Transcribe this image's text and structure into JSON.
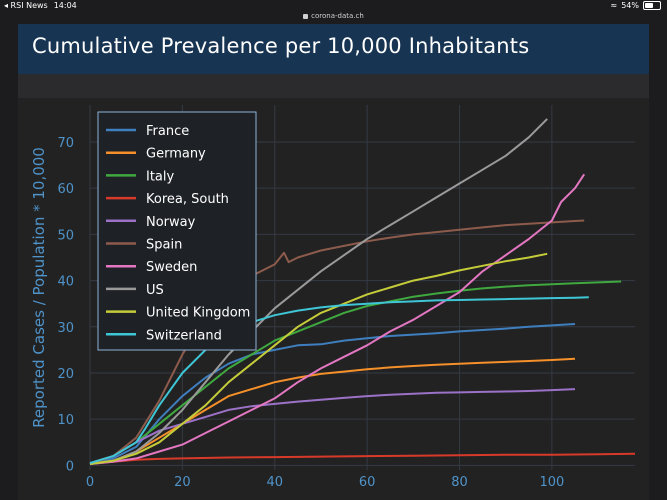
{
  "status_bar": {
    "back_app": "◂ RSI News",
    "time": "14:04",
    "url": "corona-data.ch",
    "battery": "54%",
    "battery_level": 0.54
  },
  "chart_data": {
    "type": "line",
    "title": "Cumulative Prevalence per 10,000 Inhabitants",
    "xlabel": "",
    "ylabel": "Reported Cases / Population * 10,000",
    "xlim": [
      0,
      118
    ],
    "ylim": [
      -1,
      78
    ],
    "xticks": [
      0,
      20,
      40,
      60,
      80,
      100
    ],
    "yticks": [
      0,
      10,
      20,
      30,
      40,
      50,
      60,
      70
    ],
    "grid": true,
    "legend_position": "top-left",
    "series": [
      {
        "name": "France",
        "color": "#3f7fbf",
        "x": [
          0,
          5,
          10,
          15,
          20,
          25,
          30,
          35,
          40,
          45,
          50,
          55,
          60,
          65,
          70,
          75,
          80,
          85,
          90,
          95,
          100,
          105
        ],
        "y": [
          0.5,
          1.5,
          4,
          10,
          15,
          19,
          22,
          24,
          25,
          26,
          26.2,
          27,
          27.5,
          28,
          28.3,
          28.6,
          29,
          29.3,
          29.6,
          30,
          30.3,
          30.6
        ]
      },
      {
        "name": "Germany",
        "color": "#f5902a",
        "x": [
          0,
          5,
          10,
          15,
          20,
          25,
          30,
          35,
          40,
          45,
          50,
          55,
          60,
          65,
          70,
          75,
          80,
          85,
          90,
          95,
          100,
          105
        ],
        "y": [
          0.3,
          1,
          3,
          6,
          9,
          12,
          15,
          16.5,
          18,
          19,
          19.8,
          20.3,
          20.8,
          21.2,
          21.5,
          21.8,
          22,
          22.2,
          22.4,
          22.6,
          22.8,
          23.1
        ]
      },
      {
        "name": "Italy",
        "color": "#3fa83f",
        "x": [
          0,
          5,
          10,
          15,
          20,
          25,
          30,
          35,
          40,
          45,
          50,
          55,
          60,
          65,
          70,
          75,
          80,
          85,
          90,
          95,
          100,
          105,
          110,
          115
        ],
        "y": [
          0.5,
          2,
          5,
          9,
          13,
          17,
          21,
          24,
          27,
          29,
          31,
          33,
          34.5,
          35.5,
          36.5,
          37.2,
          37.8,
          38.3,
          38.7,
          39,
          39.2,
          39.4,
          39.6,
          39.8
        ]
      },
      {
        "name": "Korea, South",
        "color": "#d83a2a",
        "x": [
          0,
          5,
          10,
          15,
          20,
          30,
          40,
          50,
          60,
          70,
          80,
          90,
          100,
          110,
          118
        ],
        "y": [
          0.3,
          0.8,
          1.2,
          1.4,
          1.5,
          1.7,
          1.8,
          1.9,
          2,
          2.1,
          2.2,
          2.3,
          2.3,
          2.4,
          2.5
        ]
      },
      {
        "name": "Norway",
        "color": "#9b72c7",
        "x": [
          0,
          5,
          10,
          15,
          20,
          25,
          30,
          35,
          40,
          45,
          50,
          55,
          60,
          65,
          70,
          75,
          80,
          85,
          90,
          95,
          100,
          105
        ],
        "y": [
          0.5,
          2,
          5,
          7.5,
          9,
          10.5,
          12,
          12.8,
          13.3,
          13.8,
          14.2,
          14.6,
          15,
          15.3,
          15.5,
          15.7,
          15.8,
          15.9,
          16,
          16.1,
          16.3,
          16.5
        ]
      },
      {
        "name": "Spain",
        "color": "#8d5b4c",
        "x": [
          0,
          5,
          10,
          15,
          20,
          25,
          30,
          35,
          40,
          42,
          43,
          45,
          50,
          55,
          60,
          65,
          70,
          75,
          80,
          85,
          90,
          95,
          100,
          105,
          107
        ],
        "y": [
          0.3,
          2,
          6,
          14,
          24,
          32,
          38,
          41,
          43.5,
          46,
          44,
          45,
          46.5,
          47.5,
          48.5,
          49.3,
          50,
          50.5,
          51,
          51.5,
          52,
          52.3,
          52.6,
          52.9,
          53
        ]
      },
      {
        "name": "Sweden",
        "color": "#e377c2",
        "x": [
          0,
          5,
          10,
          15,
          20,
          25,
          30,
          35,
          40,
          45,
          50,
          55,
          60,
          65,
          70,
          75,
          80,
          85,
          90,
          95,
          100,
          102,
          105,
          107
        ],
        "y": [
          0.3,
          0.8,
          1.5,
          3,
          4.5,
          7,
          9.5,
          12,
          14.5,
          18,
          21,
          23.5,
          26,
          29,
          31.5,
          34.5,
          37.5,
          42,
          45.5,
          49,
          53,
          57,
          60,
          63
        ]
      },
      {
        "name": "US",
        "color": "#9a9a9a",
        "x": [
          0,
          5,
          10,
          15,
          20,
          25,
          30,
          35,
          40,
          45,
          50,
          55,
          60,
          65,
          70,
          75,
          80,
          85,
          90,
          95,
          99
        ],
        "y": [
          0.3,
          1,
          3,
          7,
          12,
          18,
          24,
          29,
          34,
          38,
          42,
          45.5,
          49,
          52,
          55,
          58,
          61,
          64,
          67,
          71,
          75
        ]
      },
      {
        "name": "United Kingdom",
        "color": "#c5cc3a",
        "x": [
          0,
          5,
          10,
          15,
          20,
          25,
          30,
          35,
          40,
          45,
          50,
          55,
          60,
          65,
          70,
          75,
          80,
          85,
          90,
          95,
          99
        ],
        "y": [
          0.3,
          1,
          2.5,
          5,
          9,
          13,
          18,
          22,
          26,
          30,
          33,
          35,
          37,
          38.5,
          40,
          41,
          42.2,
          43.2,
          44.2,
          45,
          45.8
        ]
      },
      {
        "name": "Switzerland",
        "color": "#3fc6d6",
        "x": [
          0,
          5,
          10,
          12,
          15,
          20,
          25,
          30,
          35,
          40,
          45,
          50,
          55,
          60,
          65,
          70,
          75,
          80,
          85,
          90,
          95,
          100,
          105,
          108
        ],
        "y": [
          0.5,
          2,
          5,
          8,
          13,
          20,
          25,
          28.5,
          31,
          32.5,
          33.5,
          34.2,
          34.7,
          35,
          35.3,
          35.5,
          35.7,
          35.8,
          35.9,
          36,
          36.1,
          36.2,
          36.3,
          36.4
        ]
      }
    ]
  }
}
